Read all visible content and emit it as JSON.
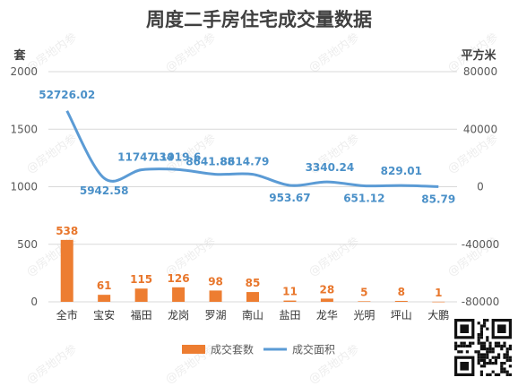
{
  "chart_data": {
    "type": "bar",
    "title": "周度二手房住宅成交量数据",
    "left_unit": "套",
    "right_unit": "平方米",
    "categories": [
      "全市",
      "宝安",
      "福田",
      "龙岗",
      "罗湖",
      "南山",
      "盐田",
      "龙华",
      "光明",
      "坪山",
      "大鹏"
    ],
    "left_axis": {
      "ticks": [
        0,
        500,
        1000,
        1500,
        2000
      ],
      "ylim": [
        0,
        2000
      ]
    },
    "right_axis": {
      "ticks": [
        -80000,
        -40000,
        0,
        40000,
        80000
      ],
      "ylim": [
        -80000,
        80000
      ]
    },
    "grid": "horizontal",
    "legend_position": "bottom",
    "series": [
      {
        "name": "成交套数",
        "type": "bar",
        "axis": "left",
        "color": "#ed7d31",
        "values": [
          538,
          61,
          115,
          126,
          98,
          85,
          11,
          28,
          5,
          8,
          1
        ],
        "labels": [
          "538",
          "61",
          "115",
          "126",
          "98",
          "85",
          "11",
          "28",
          "5",
          "8",
          "1"
        ]
      },
      {
        "name": "成交面积",
        "type": "line",
        "axis": "right",
        "color": "#5b9bd5",
        "values": [
          52726.02,
          5942.58,
          11747.34,
          11919.6,
          8641.88,
          8614.79,
          953.67,
          3340.24,
          651.12,
          829.01,
          85.79
        ],
        "labels": [
          "52726.02",
          "5942.58",
          "11747.34",
          "11919.6",
          "8641.88",
          "8614.79",
          "953.67",
          "3340.24",
          "651.12",
          "829.01",
          "85.79"
        ]
      }
    ],
    "watermark": "@房地内参"
  }
}
